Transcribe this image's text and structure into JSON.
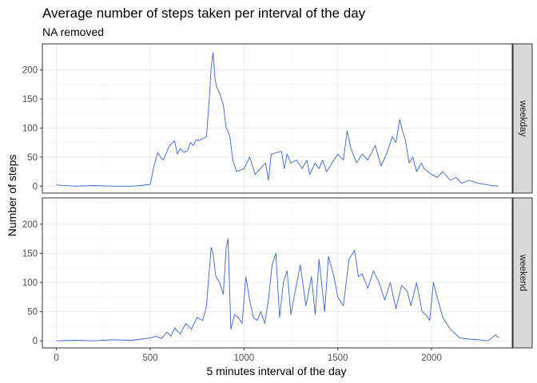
{
  "chart_data": {
    "type": "line",
    "title": "Average number of steps taken per interval of the day",
    "subtitle": "NA removed",
    "xlabel": "5 minutes interval of the day",
    "ylabel": "Number of steps",
    "xlim": [
      -75,
      2430
    ],
    "ylim": [
      -12,
      245
    ],
    "x_ticks": [
      0,
      500,
      1000,
      1500,
      2000
    ],
    "y_ticks": [
      0,
      50,
      100,
      150,
      200
    ],
    "grid": true,
    "line_color": "#3366dd",
    "facet_direction": "rows",
    "panels": [
      {
        "strip_label": "weekday",
        "x": [
          0,
          100,
          200,
          300,
          400,
          450,
          500,
          520,
          540,
          555,
          570,
          590,
          600,
          610,
          630,
          645,
          660,
          680,
          700,
          715,
          730,
          745,
          760,
          780,
          800,
          815,
          825,
          835,
          845,
          855,
          870,
          890,
          905,
          915,
          925,
          940,
          960,
          1000,
          1030,
          1060,
          1100,
          1115,
          1130,
          1145,
          1200,
          1215,
          1230,
          1250,
          1280,
          1310,
          1335,
          1350,
          1380,
          1400,
          1420,
          1440,
          1470,
          1500,
          1530,
          1550,
          1570,
          1600,
          1630,
          1660,
          1700,
          1730,
          1760,
          1790,
          1810,
          1830,
          1845,
          1860,
          1880,
          1900,
          1920,
          1945,
          1960,
          2000,
          2030,
          2060,
          2100,
          2130,
          2160,
          2200,
          2250,
          2300,
          2355
        ],
        "y": [
          2,
          0,
          1,
          0,
          0,
          1,
          3,
          35,
          58,
          50,
          45,
          60,
          68,
          72,
          78,
          55,
          65,
          58,
          62,
          75,
          70,
          80,
          78,
          82,
          85,
          150,
          205,
          230,
          185,
          170,
          160,
          140,
          100,
          95,
          85,
          45,
          25,
          30,
          50,
          20,
          35,
          40,
          10,
          55,
          60,
          30,
          55,
          40,
          45,
          30,
          45,
          20,
          40,
          30,
          45,
          25,
          40,
          55,
          45,
          95,
          65,
          40,
          55,
          45,
          70,
          35,
          55,
          85,
          75,
          115,
          95,
          80,
          40,
          50,
          25,
          40,
          30,
          20,
          15,
          25,
          10,
          15,
          5,
          10,
          5,
          2,
          0
        ]
      },
      {
        "strip_label": "weekend",
        "x": [
          0,
          100,
          200,
          300,
          400,
          450,
          500,
          530,
          560,
          590,
          610,
          630,
          660,
          690,
          720,
          750,
          780,
          800,
          815,
          825,
          835,
          850,
          870,
          890,
          905,
          915,
          930,
          950,
          970,
          990,
          1010,
          1030,
          1050,
          1070,
          1090,
          1110,
          1130,
          1150,
          1170,
          1190,
          1210,
          1230,
          1250,
          1270,
          1300,
          1330,
          1360,
          1380,
          1400,
          1430,
          1450,
          1480,
          1500,
          1530,
          1560,
          1590,
          1610,
          1630,
          1660,
          1690,
          1720,
          1750,
          1780,
          1810,
          1840,
          1870,
          1890,
          1920,
          1950,
          1970,
          1990,
          2010,
          2030,
          2060,
          2100,
          2150,
          2200,
          2250,
          2300,
          2340,
          2360
        ],
        "y": [
          0,
          1,
          0,
          2,
          1,
          3,
          5,
          8,
          4,
          15,
          8,
          22,
          12,
          30,
          20,
          40,
          35,
          60,
          120,
          160,
          150,
          110,
          100,
          80,
          160,
          175,
          20,
          45,
          40,
          30,
          110,
          70,
          40,
          35,
          50,
          30,
          70,
          130,
          150,
          40,
          100,
          120,
          45,
          80,
          130,
          60,
          110,
          45,
          140,
          50,
          145,
          110,
          75,
          60,
          140,
          155,
          110,
          115,
          90,
          120,
          100,
          70,
          100,
          55,
          95,
          85,
          60,
          100,
          50,
          45,
          35,
          100,
          75,
          40,
          20,
          5,
          3,
          2,
          0,
          10,
          5
        ]
      }
    ]
  }
}
